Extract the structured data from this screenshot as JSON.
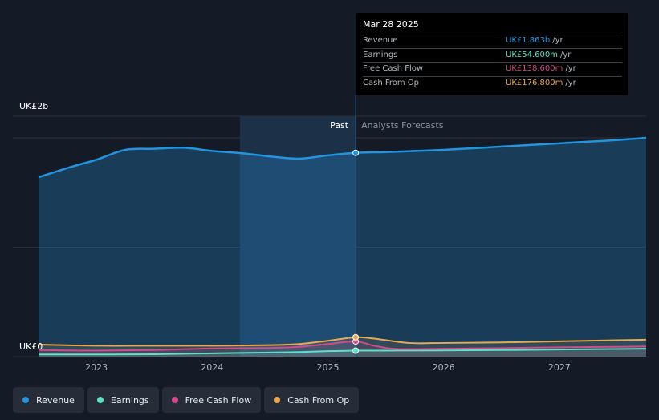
{
  "tooltip": {
    "date": "Mar 28 2025",
    "rows": [
      {
        "label": "Revenue",
        "value": "UK£1.863b",
        "unit": "/yr",
        "color": "#2394df"
      },
      {
        "label": "Earnings",
        "value": "UK£54.600m",
        "unit": "/yr",
        "color": "#5ce1c6"
      },
      {
        "label": "Free Cash Flow",
        "value": "UK£138.600m",
        "unit": "/yr",
        "color": "#ce4c8b"
      },
      {
        "label": "Cash From Op",
        "value": "UK£176.800m",
        "unit": "/yr",
        "color": "#e9a951"
      }
    ]
  },
  "legend": [
    {
      "label": "Revenue",
      "color": "#2394df"
    },
    {
      "label": "Earnings",
      "color": "#5ce1c6"
    },
    {
      "label": "Free Cash Flow",
      "color": "#ce4c8b"
    },
    {
      "label": "Cash From Op",
      "color": "#e9a951"
    }
  ],
  "chart_data": {
    "type": "line",
    "title": "",
    "y_axis_labels": [
      "UK£2b",
      "UK£0"
    ],
    "ylim": [
      0,
      2
    ],
    "y_unit": "UK£ billions",
    "x_tick_labels": [
      "2023",
      "2024",
      "2025",
      "2026",
      "2027"
    ],
    "xlim": [
      2022.5,
      2027.75
    ],
    "past_label": "Past",
    "forecast_label": "Analysts Forecasts",
    "past_shade_start": 2024.24,
    "divider_x": 2025.24,
    "series": [
      {
        "name": "Revenue",
        "color": "#2394df",
        "x": [
          2022.5,
          2022.8,
          2023.0,
          2023.25,
          2023.5,
          2023.75,
          2024.0,
          2024.25,
          2024.5,
          2024.75,
          2025.0,
          2025.24,
          2025.5,
          2025.75,
          2026.0,
          2026.25,
          2026.5,
          2026.75,
          2027.0,
          2027.25,
          2027.5,
          2027.75
        ],
        "y": [
          1.64,
          1.74,
          1.8,
          1.89,
          1.9,
          1.91,
          1.88,
          1.86,
          1.83,
          1.81,
          1.84,
          1.863,
          1.87,
          1.88,
          1.89,
          1.905,
          1.92,
          1.935,
          1.95,
          1.965,
          1.98,
          2.0
        ]
      },
      {
        "name": "Earnings",
        "color": "#5ce1c6",
        "x": [
          2022.5,
          2023.0,
          2023.5,
          2024.0,
          2024.5,
          2024.75,
          2025.0,
          2025.24,
          2025.5,
          2026.0,
          2026.5,
          2027.0,
          2027.5,
          2027.75
        ],
        "y": [
          0.02,
          0.02,
          0.022,
          0.03,
          0.038,
          0.042,
          0.05,
          0.0546,
          0.055,
          0.057,
          0.06,
          0.065,
          0.07,
          0.072
        ]
      },
      {
        "name": "Free Cash Flow",
        "color": "#ce4c8b",
        "x": [
          2022.5,
          2023.0,
          2023.5,
          2024.0,
          2024.5,
          2024.75,
          2025.0,
          2025.24,
          2025.4,
          2025.6,
          2026.0,
          2026.5,
          2027.0,
          2027.5,
          2027.75
        ],
        "y": [
          0.06,
          0.055,
          0.06,
          0.075,
          0.08,
          0.09,
          0.115,
          0.1386,
          0.1,
          0.07,
          0.072,
          0.078,
          0.085,
          0.09,
          0.093
        ]
      },
      {
        "name": "Cash From Op",
        "color": "#e9a951",
        "x": [
          2022.5,
          2023.0,
          2023.5,
          2024.0,
          2024.5,
          2024.75,
          2025.0,
          2025.24,
          2025.4,
          2025.7,
          2026.0,
          2026.5,
          2027.0,
          2027.5,
          2027.75
        ],
        "y": [
          0.11,
          0.1,
          0.1,
          0.1,
          0.105,
          0.115,
          0.145,
          0.1768,
          0.165,
          0.125,
          0.125,
          0.13,
          0.14,
          0.15,
          0.155
        ]
      }
    ]
  }
}
